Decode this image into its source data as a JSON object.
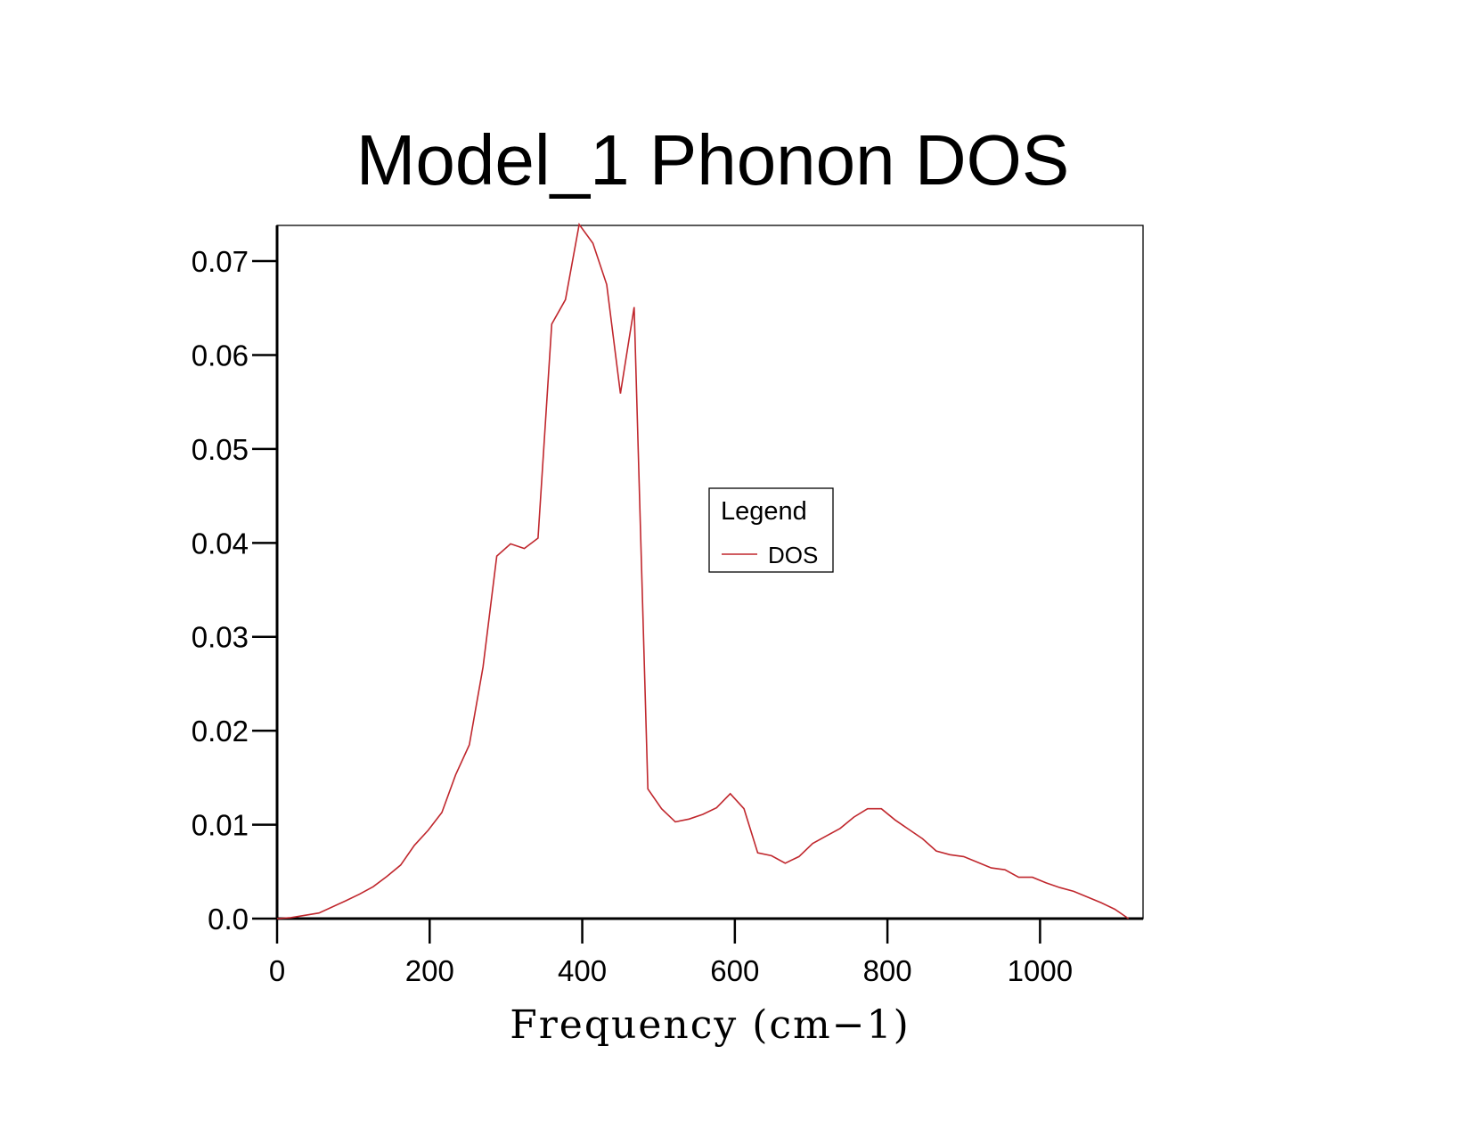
{
  "chart_data": {
    "type": "line",
    "title": "Model_1 Phonon DOS",
    "xlabel": "Frequency (cm−1)",
    "ylabel": "",
    "xlim": [
      0,
      1135
    ],
    "ylim": [
      0,
      0.0738
    ],
    "xticks": [
      0,
      200,
      400,
      600,
      800,
      1000
    ],
    "xtick_labels": [
      "0",
      "200",
      "400",
      "600",
      "800",
      "1000"
    ],
    "yticks": [
      0.0,
      0.01,
      0.02,
      0.03,
      0.04,
      0.05,
      0.06,
      0.07
    ],
    "ytick_labels": [
      "0.0",
      "0.01",
      "0.02",
      "0.03",
      "0.04",
      "0.05",
      "0.06",
      "0.07"
    ],
    "grid": false,
    "legend": {
      "title": "Legend",
      "placement": "center-right"
    },
    "series": [
      {
        "name": "DOS",
        "color": "#c0272d",
        "x": [
          0,
          18,
          55,
          90,
          108,
          126,
          144,
          162,
          180,
          198,
          216,
          234,
          252,
          270,
          288,
          306,
          324,
          342,
          360,
          378,
          396,
          414,
          432,
          450,
          468,
          486,
          504,
          522,
          540,
          558,
          576,
          594,
          612,
          630,
          648,
          666,
          684,
          702,
          720,
          738,
          756,
          774,
          792,
          810,
          828,
          846,
          864,
          882,
          900,
          918,
          936,
          954,
          972,
          990,
          1008,
          1026,
          1044,
          1062,
          1080,
          1098,
          1116
        ],
        "y": [
          0.0,
          0.0001,
          0.0006,
          0.0019,
          0.0026,
          0.0034,
          0.0045,
          0.0057,
          0.0078,
          0.0094,
          0.0113,
          0.0153,
          0.0185,
          0.0268,
          0.0386,
          0.0399,
          0.0394,
          0.0405,
          0.0633,
          0.0659,
          0.0739,
          0.0719,
          0.0675,
          0.0559,
          0.0651,
          0.0138,
          0.0117,
          0.0103,
          0.0106,
          0.0111,
          0.0118,
          0.0133,
          0.0117,
          0.007,
          0.0067,
          0.0059,
          0.0066,
          0.008,
          0.0088,
          0.0096,
          0.0108,
          0.0117,
          0.0117,
          0.0105,
          0.0095,
          0.0085,
          0.0072,
          0.0068,
          0.0066,
          0.006,
          0.0054,
          0.0052,
          0.0044,
          0.0044,
          0.0038,
          0.0033,
          0.0029,
          0.0023,
          0.0017,
          0.001,
          0.0
        ]
      }
    ]
  }
}
